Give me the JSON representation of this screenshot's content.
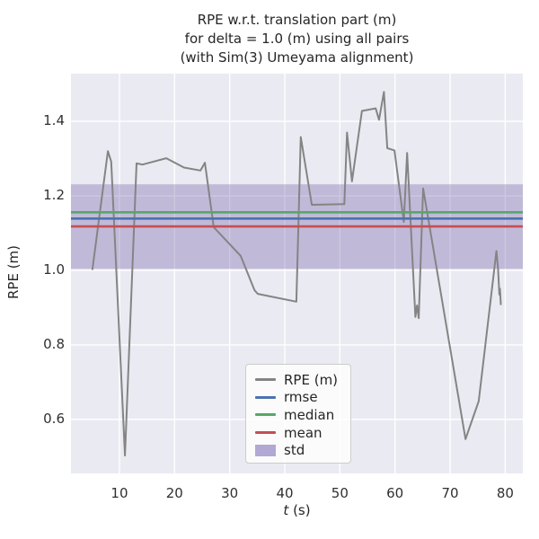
{
  "title": {
    "line1": "RPE w.r.t. translation part (m)",
    "line2": "for delta = 1.0 (m) using all pairs",
    "line3": "(with Sim(3) Umeyama alignment)"
  },
  "axes": {
    "ylabel": "RPE (m)",
    "xlabel_variable": "t",
    "xlabel_unit": " (s)"
  },
  "legend": {
    "items": [
      {
        "label": "RPE (m)",
        "color": "#848484",
        "type": "line"
      },
      {
        "label": "rmse",
        "color": "#4c72b0",
        "type": "line"
      },
      {
        "label": "median",
        "color": "#55a868",
        "type": "line"
      },
      {
        "label": "mean",
        "color": "#c44e52",
        "type": "line"
      },
      {
        "label": "std",
        "color": "#b1a8d4",
        "type": "patch"
      }
    ]
  },
  "colors": {
    "axes_background": "#eaeaf2",
    "grid": "#ffffff",
    "text": "#262626"
  },
  "chart_data": {
    "type": "line",
    "title": "RPE w.r.t. translation part (m) for delta = 1.0 (m) using all pairs (with Sim(3) Umeyama alignment)",
    "xlabel": "t (s)",
    "ylabel": "RPE (m)",
    "xlim": [
      1.2,
      83.2
    ],
    "ylim": [
      0.455,
      1.528
    ],
    "xticks": [
      10,
      20,
      30,
      40,
      50,
      60,
      70,
      80
    ],
    "yticks": [
      0.6,
      0.8,
      1.0,
      1.2,
      1.4
    ],
    "grid": true,
    "legend_position": "lower right",
    "series": [
      {
        "name": "RPE (m)",
        "color": "#848484",
        "points": [
          [
            5.1,
            1.003
          ],
          [
            7.9,
            1.32
          ],
          [
            8.5,
            1.292
          ],
          [
            11.0,
            0.503
          ],
          [
            13.1,
            1.287
          ],
          [
            14.2,
            1.284
          ],
          [
            18.5,
            1.301
          ],
          [
            21.7,
            1.276
          ],
          [
            24.7,
            1.268
          ],
          [
            25.5,
            1.289
          ],
          [
            27.1,
            1.116
          ],
          [
            32.0,
            1.039
          ],
          [
            34.5,
            0.947
          ],
          [
            35.1,
            0.937
          ],
          [
            42.1,
            0.916
          ],
          [
            42.9,
            1.358
          ],
          [
            44.9,
            1.176
          ],
          [
            50.8,
            1.178
          ],
          [
            51.3,
            1.37
          ],
          [
            52.2,
            1.239
          ],
          [
            54.0,
            1.428
          ],
          [
            56.5,
            1.435
          ],
          [
            57.1,
            1.404
          ],
          [
            58.0,
            1.479
          ],
          [
            58.6,
            1.328
          ],
          [
            59.9,
            1.322
          ],
          [
            61.6,
            1.13
          ],
          [
            62.2,
            1.315
          ],
          [
            63.7,
            0.875
          ],
          [
            64.0,
            0.906
          ],
          [
            64.3,
            0.872
          ],
          [
            65.1,
            1.22
          ],
          [
            72.8,
            0.547
          ],
          [
            75.2,
            0.649
          ],
          [
            78.4,
            1.052
          ],
          [
            78.7,
            1.005
          ],
          [
            78.95,
            0.935
          ],
          [
            79.05,
            0.951
          ],
          [
            79.2,
            0.909
          ]
        ]
      }
    ],
    "stat_lines": [
      {
        "name": "rmse",
        "value": 1.139,
        "color": "#4c72b0"
      },
      {
        "name": "median",
        "value": 1.156,
        "color": "#55a868"
      },
      {
        "name": "mean",
        "value": 1.118,
        "color": "#c44e52"
      }
    ],
    "std_band": {
      "name": "std",
      "lower": 1.004,
      "upper": 1.231,
      "color": "#8172b2",
      "opacity": 0.4
    }
  }
}
